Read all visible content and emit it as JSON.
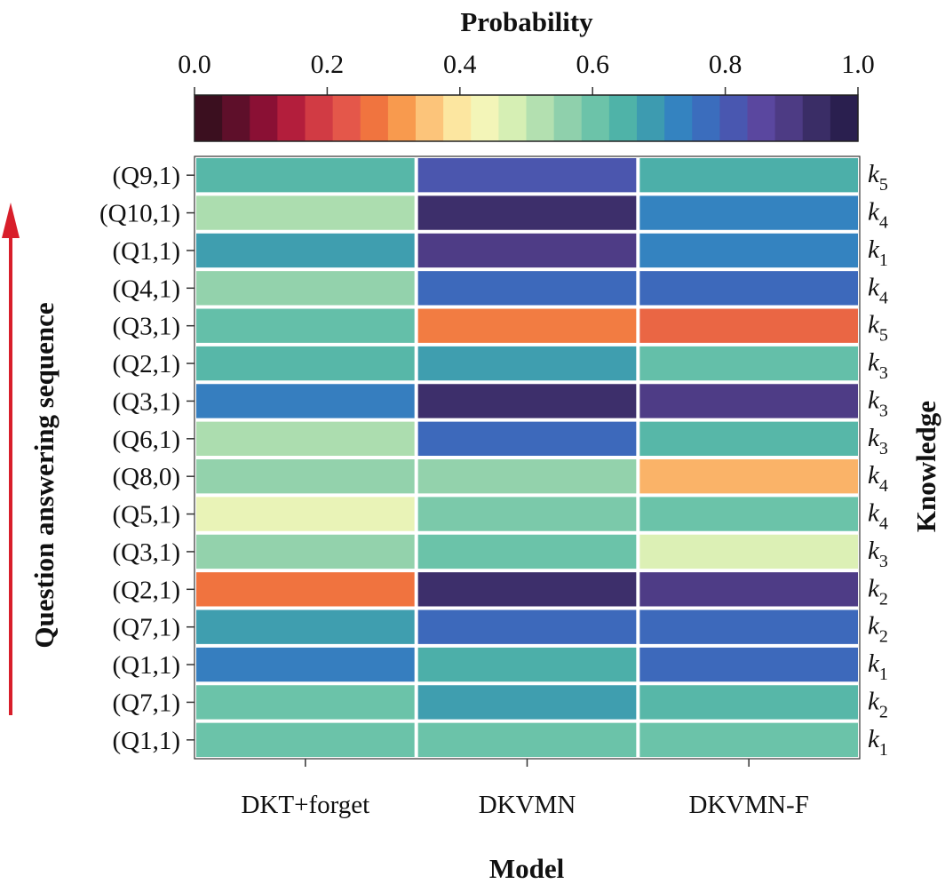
{
  "chart_data": {
    "type": "heatmap",
    "colorbar": {
      "title": "Probability",
      "ticks": [
        "0.0",
        "0.2",
        "0.4",
        "0.6",
        "0.8",
        "1.0"
      ],
      "range": [
        0,
        1
      ],
      "colormap": [
        "#3b0f1f",
        "#5e0f2a",
        "#8a1034",
        "#b31e3c",
        "#d13b44",
        "#e4574a",
        "#f0743f",
        "#f89a4e",
        "#fcc47a",
        "#fce6a0",
        "#f3f5b8",
        "#d6efb4",
        "#b3e0b0",
        "#8fd0ac",
        "#6cc3a9",
        "#4fb3a8",
        "#3d9bb0",
        "#3483c0",
        "#3b6dbd",
        "#4957b0",
        "#5a479f",
        "#4d3b84",
        "#3a2d66",
        "#2a1f4f"
      ]
    },
    "xlabel": "Model",
    "ylabel": "Question answering sequence",
    "right_label": "Knowledge",
    "columns": [
      "DKT+forget",
      "DKVMN",
      "DKVMN-F"
    ],
    "rows": [
      {
        "question": "(Q9,1)",
        "knowledge": "k",
        "sub": "5",
        "values": [
          0.64,
          0.83,
          0.66
        ]
      },
      {
        "question": "(Q10,1)",
        "knowledge": "k",
        "sub": "4",
        "values": [
          0.53,
          0.95,
          0.74
        ]
      },
      {
        "question": "(Q1,1)",
        "knowledge": "k",
        "sub": "1",
        "values": [
          0.69,
          0.91,
          0.74
        ]
      },
      {
        "question": "(Q4,1)",
        "knowledge": "k",
        "sub": "4",
        "values": [
          0.56,
          0.79,
          0.79
        ]
      },
      {
        "question": "(Q3,1)",
        "knowledge": "k",
        "sub": "5",
        "values": [
          0.62,
          0.27,
          0.24
        ]
      },
      {
        "question": "(Q2,1)",
        "knowledge": "k",
        "sub": "3",
        "values": [
          0.64,
          0.69,
          0.62
        ]
      },
      {
        "question": "(Q3,1)",
        "knowledge": "k",
        "sub": "3",
        "values": [
          0.75,
          0.95,
          0.91
        ]
      },
      {
        "question": "(Q6,1)",
        "knowledge": "k",
        "sub": "3",
        "values": [
          0.53,
          0.79,
          0.64
        ]
      },
      {
        "question": "(Q8,0)",
        "knowledge": "k",
        "sub": "4",
        "values": [
          0.56,
          0.56,
          0.33
        ]
      },
      {
        "question": "(Q5,1)",
        "knowledge": "k",
        "sub": "4",
        "values": [
          0.45,
          0.59,
          0.61
        ]
      },
      {
        "question": "(Q3,1)",
        "knowledge": "k",
        "sub": "3",
        "values": [
          0.56,
          0.61,
          0.47
        ]
      },
      {
        "question": "(Q2,1)",
        "knowledge": "k",
        "sub": "2",
        "values": [
          0.26,
          0.95,
          0.91
        ]
      },
      {
        "question": "(Q7,1)",
        "knowledge": "k",
        "sub": "2",
        "values": [
          0.69,
          0.79,
          0.79
        ]
      },
      {
        "question": "(Q1,1)",
        "knowledge": "k",
        "sub": "1",
        "values": [
          0.75,
          0.66,
          0.79
        ]
      },
      {
        "question": "(Q7,1)",
        "knowledge": "k",
        "sub": "2",
        "values": [
          0.61,
          0.69,
          0.64
        ]
      },
      {
        "question": "(Q1,1)",
        "knowledge": "k",
        "sub": "1",
        "values": [
          0.61,
          0.61,
          0.61
        ]
      }
    ]
  },
  "colors": {
    "arrow": "#d81e2a",
    "grid_gap": "#ffffff"
  }
}
